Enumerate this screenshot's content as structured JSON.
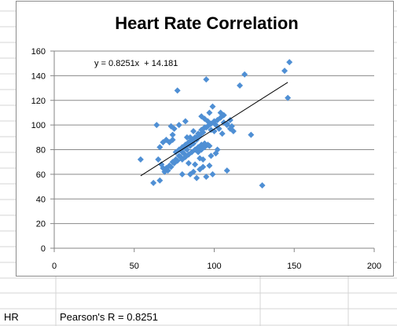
{
  "sheet": {
    "row_label": "HR",
    "pearson_text": "Pearson's R = 0.8251"
  },
  "colors": {
    "marker": "#4f8fd4",
    "trendline": "#000000",
    "gridline": "#8a8a8a",
    "sheet_grid": "#d4d4d4"
  },
  "chart_data": {
    "type": "scatter",
    "title": "Heart Rate Correlation",
    "xlabel": "",
    "ylabel": "",
    "xlim": [
      0,
      200
    ],
    "ylim": [
      0,
      160
    ],
    "xticks": [
      0,
      50,
      100,
      150,
      200
    ],
    "yticks": [
      0,
      20,
      40,
      60,
      80,
      100,
      120,
      140,
      160
    ],
    "grid": {
      "horizontal": true,
      "vertical": false
    },
    "legend": "none",
    "trendline": {
      "equation": "y = 0.8251x  + 14.181",
      "slope": 0.8251,
      "intercept": 14.181,
      "x_range": [
        54,
        146
      ]
    },
    "series": [
      {
        "marker": "diamond",
        "x": [
          147,
          144,
          146,
          119,
          116,
          95,
          77,
          130,
          123,
          108,
          54,
          62,
          66,
          68,
          64,
          75,
          73,
          82,
          87,
          97,
          92,
          94,
          99,
          104,
          106,
          110,
          111,
          108,
          103,
          101,
          96,
          98,
          95,
          93,
          91,
          89,
          87,
          85,
          83,
          81,
          79,
          77,
          75,
          73,
          71,
          69,
          67,
          65,
          70,
          72,
          74,
          76,
          78,
          80,
          82,
          84,
          86,
          88,
          90,
          92,
          94,
          96,
          98,
          100,
          102,
          104,
          106,
          108,
          110,
          112,
          85,
          87,
          89,
          91,
          93,
          95,
          97,
          99,
          79,
          81,
          83,
          85,
          87,
          89,
          91,
          93,
          80,
          82,
          84,
          86,
          88,
          90,
          92,
          72,
          74,
          76,
          78,
          80,
          82,
          84,
          86,
          90,
          92,
          94,
          96,
          85,
          75,
          80,
          88,
          93,
          100,
          105,
          78,
          83,
          86,
          94,
          97,
          102,
          98,
          101,
          91,
          84,
          70,
          74,
          68,
          66
        ],
        "y": [
          151,
          144,
          122,
          141,
          132,
          137,
          128,
          51,
          92,
          63,
          72,
          53,
          55,
          65,
          100,
          97,
          99,
          103,
          95,
          110,
          107,
          105,
          115,
          110,
          108,
          104,
          99,
          101,
          97,
          100,
          103,
          96,
          98,
          94,
          91,
          88,
          85,
          83,
          80,
          77,
          74,
          71,
          69,
          66,
          63,
          62,
          68,
          72,
          65,
          67,
          70,
          72,
          75,
          78,
          81,
          84,
          87,
          90,
          93,
          96,
          98,
          99,
          101,
          103,
          104,
          106,
          102,
          100,
          97,
          95,
          60,
          62,
          57,
          64,
          66,
          58,
          67,
          60,
          80,
          82,
          84,
          86,
          88,
          90,
          92,
          94,
          72,
          74,
          76,
          78,
          80,
          82,
          84,
          86,
          88,
          78,
          80,
          82,
          84,
          86,
          88,
          78,
          80,
          82,
          84,
          90,
          70,
          60,
          68,
          72,
          95,
          93,
          100,
          90,
          87,
          85,
          83,
          80,
          75,
          77,
          73,
          69,
          88,
          92,
          86,
          82
        ]
      }
    ]
  }
}
